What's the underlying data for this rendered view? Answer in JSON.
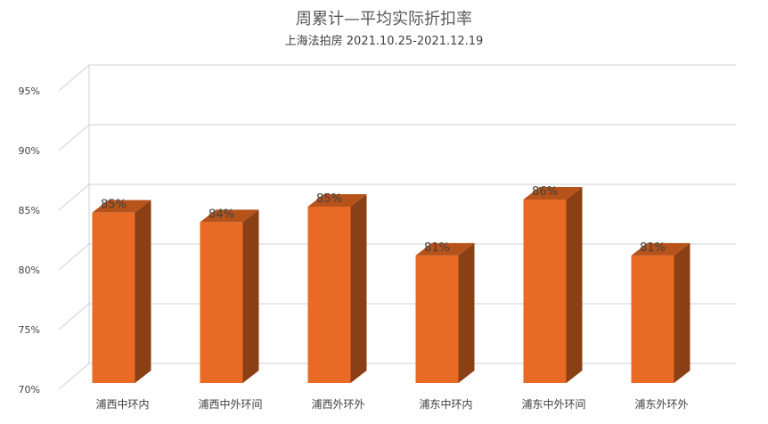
{
  "chart_data": {
    "type": "bar",
    "title": "周累计—平均实际折扣率",
    "subtitle": "上海法拍房  2021.10.25-2021.12.19",
    "categories": [
      "浦西中环内",
      "浦西中外环间",
      "浦西外环外",
      "浦东中环内",
      "浦东中外环间",
      "浦东外环外"
    ],
    "values": [
      84.8,
      84.0,
      85.3,
      81.2,
      85.9,
      81.2
    ],
    "data_labels": [
      "85%",
      "84%",
      "85%",
      "81%",
      "86%",
      "81%"
    ],
    "ylim": [
      70,
      95
    ],
    "yticks": [
      70,
      75,
      80,
      85,
      90,
      95
    ],
    "ytick_labels": [
      "70%",
      "75%",
      "80%",
      "85%",
      "90%",
      "95%"
    ],
    "grid": true,
    "style_3d": true,
    "colors": {
      "bar_front": "#e86a24",
      "bar_side": "#8a3f14",
      "bar_top": "#b5531b",
      "grid": "#d0d0d0"
    }
  }
}
